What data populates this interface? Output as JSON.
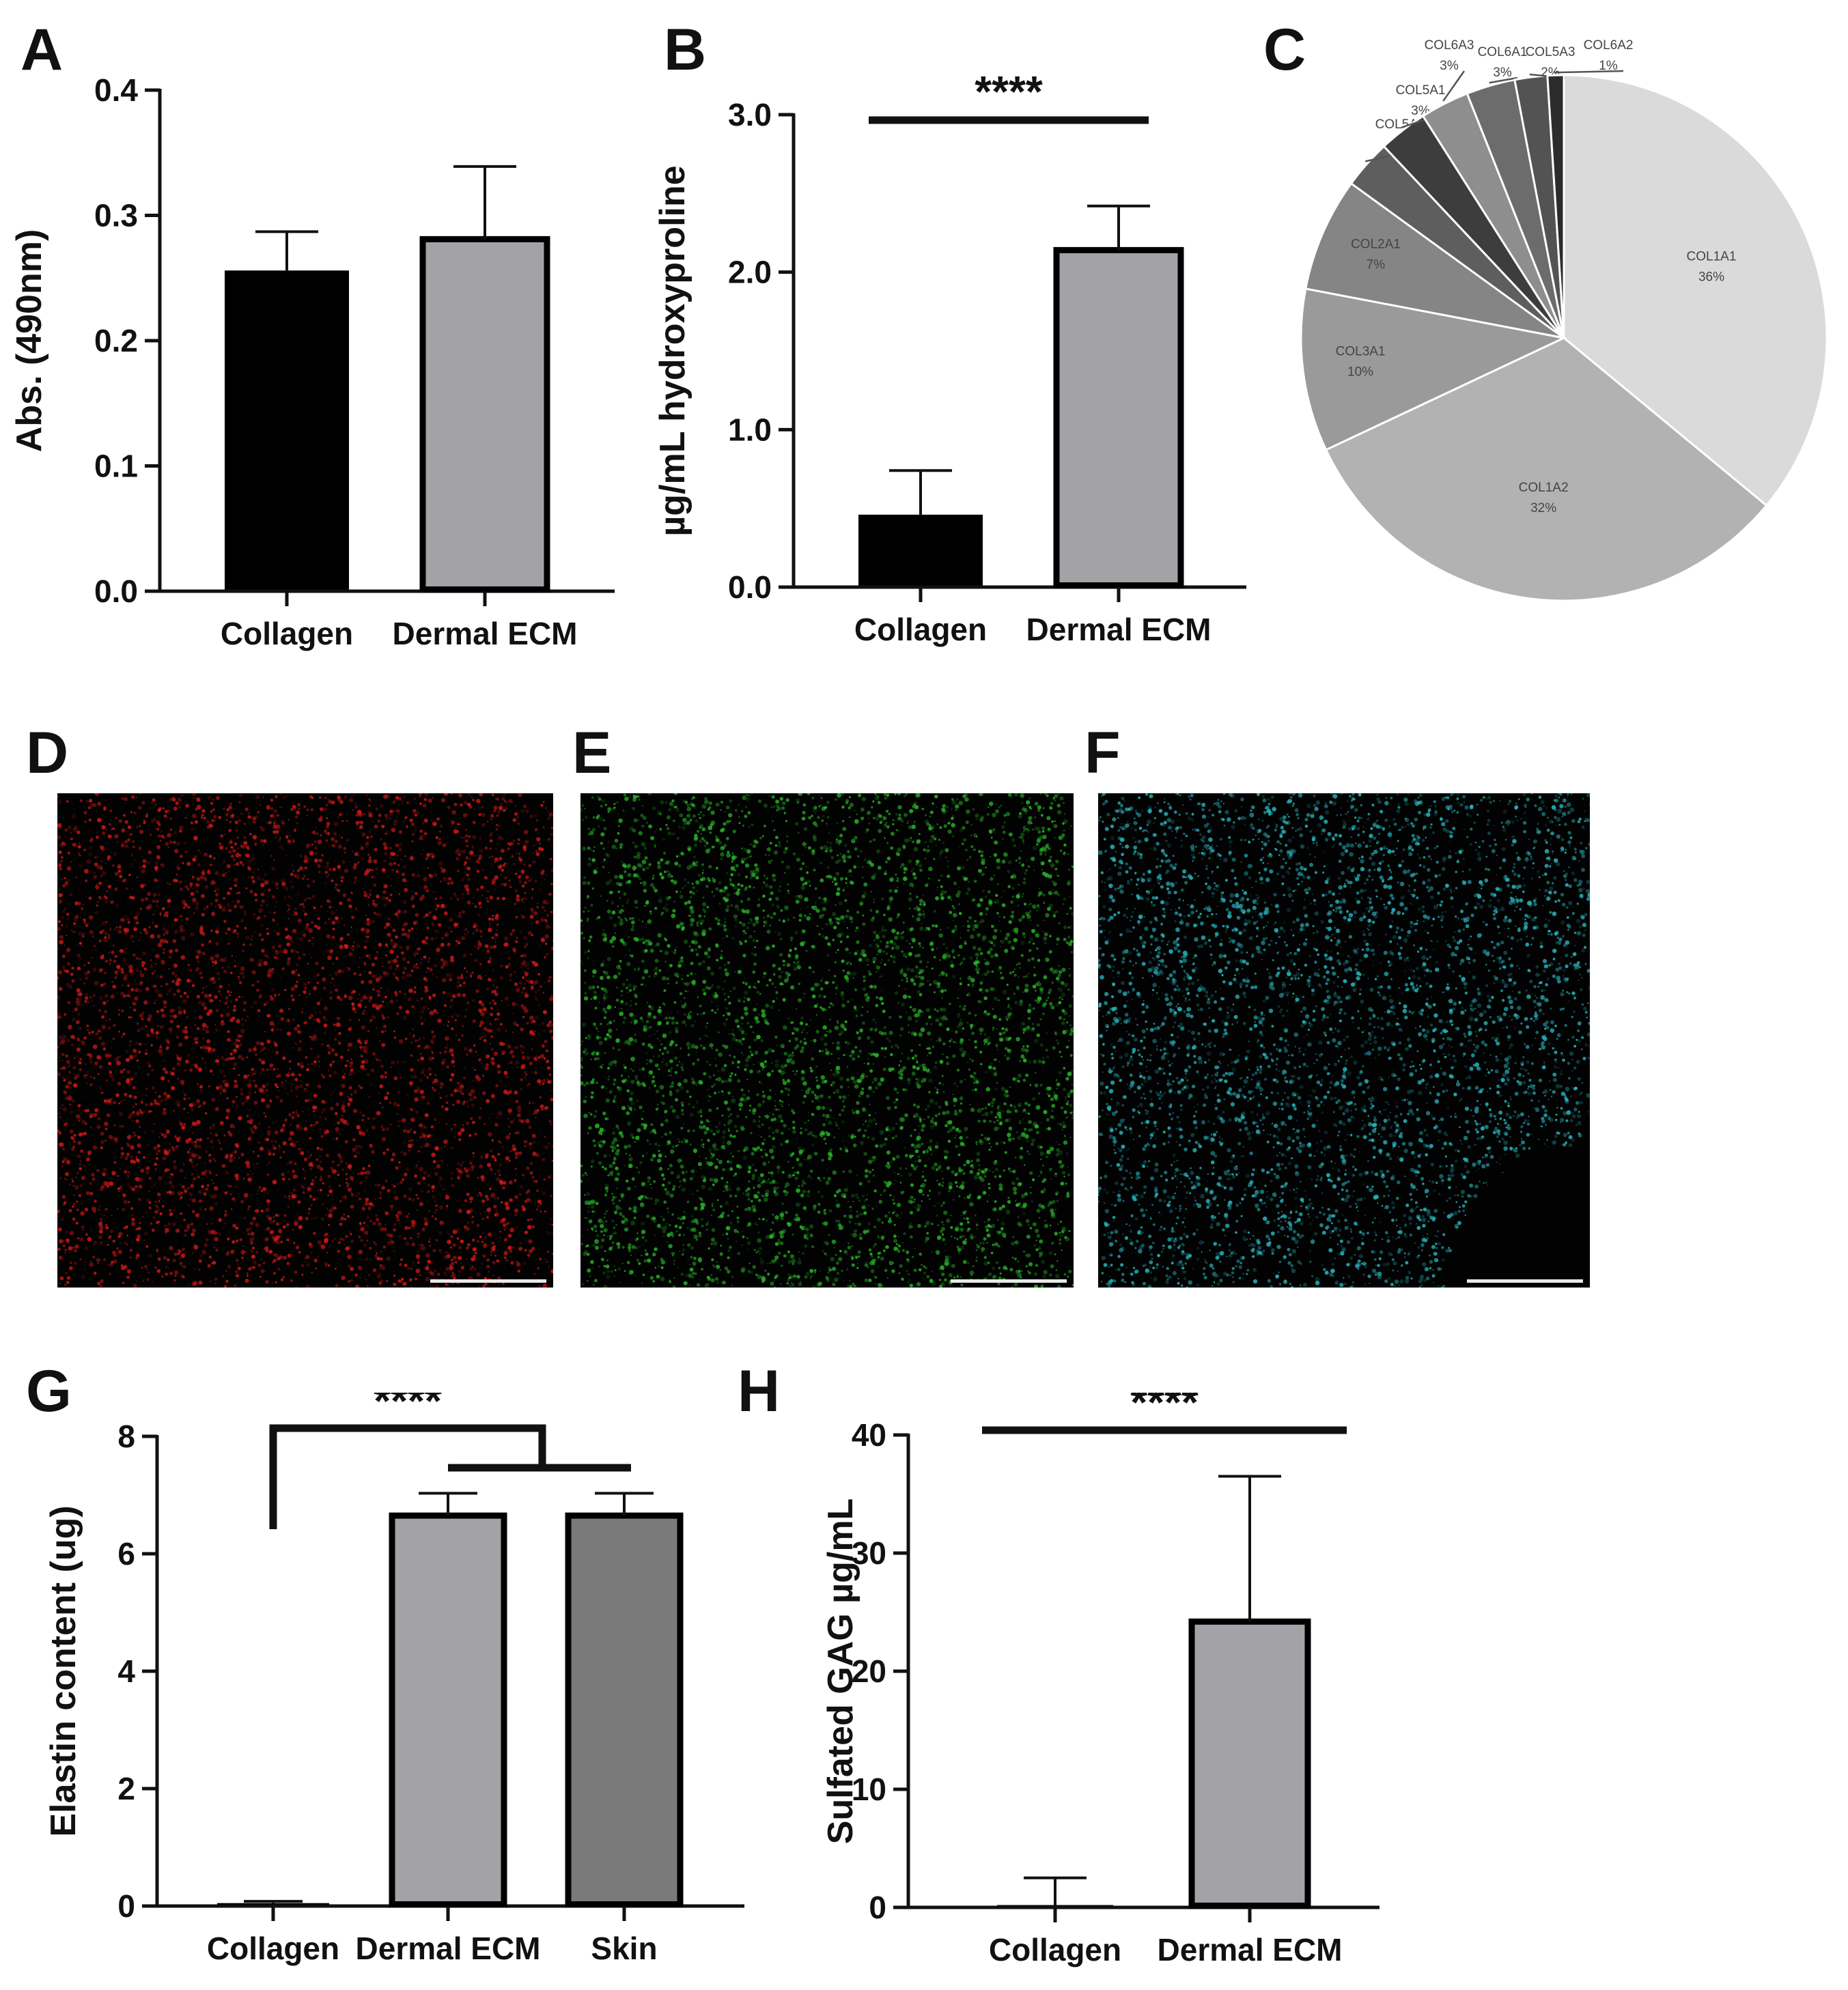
{
  "panels": {
    "A": {
      "label": "A"
    },
    "B": {
      "label": "B"
    },
    "C": {
      "label": "C"
    },
    "D": {
      "label": "D"
    },
    "E": {
      "label": "E"
    },
    "F": {
      "label": "F"
    },
    "G": {
      "label": "G"
    },
    "H": {
      "label": "H"
    }
  },
  "microscopy": [
    {
      "panel": "D",
      "channel_color": "#d01818"
    },
    {
      "panel": "E",
      "channel_color": "#28b428"
    },
    {
      "panel": "F",
      "channel_color": "#28b4bc"
    }
  ],
  "chart_data": [
    {
      "panel": "A",
      "type": "bar",
      "categories": [
        "Collagen",
        "Dermal ECM"
      ],
      "values": [
        0.256,
        0.281
      ],
      "errors": [
        0.031,
        0.058
      ],
      "bar_colors": [
        "#000000",
        "#a2a2a7"
      ],
      "ylabel": "Abs. (490nm)",
      "yticks": [
        "0.0",
        "0.1",
        "0.2",
        "0.3",
        "0.4"
      ],
      "ylim": [
        0,
        0.4
      ],
      "significance": []
    },
    {
      "panel": "B",
      "type": "bar",
      "categories": [
        "Collagen",
        "Dermal ECM"
      ],
      "values": [
        0.46,
        2.14
      ],
      "errors": [
        0.28,
        0.28
      ],
      "bar_colors": [
        "#000000",
        "#a2a2a7"
      ],
      "ylabel": "µg/mL hydroxyproline",
      "yticks": [
        "0.0",
        "1.0",
        "2.0",
        "3.0"
      ],
      "ylim": [
        0,
        3.0
      ],
      "significance": [
        {
          "text": "****",
          "from": 0,
          "to": 1
        }
      ]
    },
    {
      "panel": "C",
      "type": "pie",
      "slices": [
        {
          "label": "COL1A1",
          "pct": "36%",
          "value": 36,
          "color": "#dadada"
        },
        {
          "label": "COL1A2",
          "pct": "32%",
          "value": 32,
          "color": "#b2b2b2"
        },
        {
          "label": "COL3A1",
          "pct": "10%",
          "value": 10,
          "color": "#9a9a9a"
        },
        {
          "label": "COL2A1",
          "pct": "7%",
          "value": 7,
          "color": "#858585"
        },
        {
          "label": "COL5A2",
          "pct": "3%",
          "value": 3,
          "color": "#5e5e5e"
        },
        {
          "label": "COL5A1",
          "pct": "3%",
          "value": 3,
          "color": "#3d3d3d"
        },
        {
          "label": "COL6A3",
          "pct": "3%",
          "value": 3,
          "color": "#8e8e8e"
        },
        {
          "label": "COL6A1",
          "pct": "3%",
          "value": 3,
          "color": "#6c6c6c"
        },
        {
          "label": "COL5A3",
          "pct": "2%",
          "value": 2,
          "color": "#535353"
        },
        {
          "label": "COL6A2",
          "pct": "1%",
          "value": 1,
          "color": "#2c2c2c"
        }
      ]
    },
    {
      "panel": "G",
      "type": "bar",
      "categories": [
        "Collagen",
        "Dermal ECM",
        "Skin"
      ],
      "values": [
        0.05,
        6.65,
        6.65
      ],
      "errors": [
        0.03,
        0.38,
        0.38
      ],
      "bar_colors": [
        "#000000",
        "#a2a2a7",
        "#7a7a7a"
      ],
      "ylabel": "Elastin content (ug)",
      "yticks": [
        "0",
        "2",
        "4",
        "6",
        "8"
      ],
      "ylim": [
        0,
        8
      ],
      "significance": [
        {
          "text": "****",
          "from": 0,
          "to": [
            1,
            2
          ]
        }
      ]
    },
    {
      "panel": "H",
      "type": "bar",
      "categories": [
        "Collagen",
        "Dermal ECM"
      ],
      "values": [
        0.2,
        24.2
      ],
      "errors": [
        2.3,
        12.3
      ],
      "bar_colors": [
        "#000000",
        "#a2a2a7"
      ],
      "ylabel": "Sulfated GAG µg/mL",
      "yticks": [
        "0",
        "10",
        "20",
        "30",
        "40"
      ],
      "ylim": [
        0,
        40
      ],
      "significance": [
        {
          "text": "****",
          "from": 0,
          "to": 1
        }
      ]
    }
  ]
}
